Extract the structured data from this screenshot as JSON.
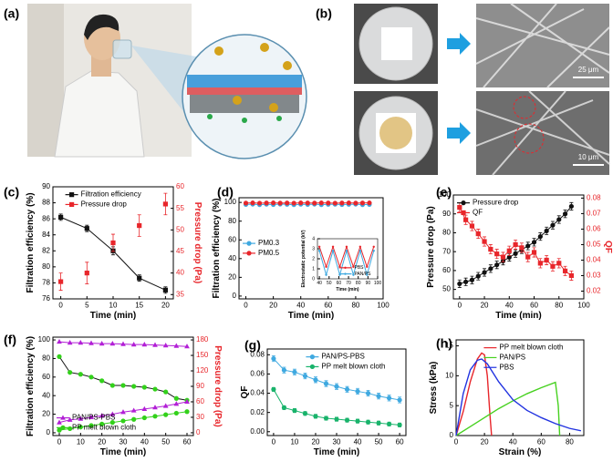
{
  "panels": {
    "a": {
      "label": "(a)"
    },
    "b": {
      "label": "(b)",
      "scale_bars": [
        "25 μm",
        "10 μm"
      ]
    }
  },
  "chart_data": [
    {
      "type": "line",
      "panel": "(c)",
      "xlabel": "Time (min)",
      "ylabel": "Filtration efficiency (%)",
      "y2label": "Pressure drop (Pa)",
      "y2_color": "#e8262b",
      "x": [
        0,
        5,
        10,
        15,
        20
      ],
      "xlim": [
        -1.5,
        21.5
      ],
      "xticks": [
        0,
        5,
        10,
        15,
        20
      ],
      "ylim": [
        76,
        90
      ],
      "yticks": [
        76,
        78,
        80,
        82,
        84,
        86,
        88,
        90
      ],
      "y2lim": [
        34,
        60
      ],
      "y2ticks": [
        35,
        40,
        45,
        50,
        55,
        60
      ],
      "legend": "upper right",
      "series": [
        {
          "name": "Filtration efficiency",
          "color": "#111111",
          "marker": "square",
          "values": [
            86.2,
            84.8,
            82.0,
            78.6,
            77.1
          ],
          "errors": [
            0.4,
            0.4,
            0.5,
            0.4,
            0.4
          ]
        },
        {
          "name": "Pressure drop",
          "color": "#e8262b",
          "marker": "square",
          "axis": "y2",
          "line": false,
          "values": [
            38,
            40,
            47,
            51,
            56
          ],
          "errors": [
            2,
            2.5,
            2,
            2.5,
            2.5
          ]
        }
      ]
    },
    {
      "type": "line",
      "panel": "(d)",
      "xlabel": "Time (min)",
      "ylabel": "Filtration efficiency (%)",
      "x": [
        0,
        5,
        10,
        15,
        20,
        25,
        30,
        35,
        40,
        45,
        50,
        55,
        60,
        65,
        70,
        75,
        80,
        85,
        90
      ],
      "xlim": [
        -5,
        100
      ],
      "xticks": [
        0,
        20,
        40,
        60,
        80,
        100
      ],
      "ylim": [
        -3,
        105
      ],
      "yticks": [
        0,
        20,
        40,
        60,
        80,
        100
      ],
      "legend": "center left",
      "series": [
        {
          "name": "PM0.3",
          "color": "#3fa9e0",
          "marker": "circle",
          "values": [
            97.8,
            98.1,
            97.6,
            98.0,
            97.7,
            98.2,
            97.9,
            97.5,
            98.0,
            97.8,
            98.1,
            97.6,
            97.9,
            98.0,
            97.7,
            97.9,
            98.1,
            97.6,
            97.8
          ]
        },
        {
          "name": "PM0.5",
          "color": "#e8262b",
          "marker": "circle",
          "values": [
            99.3,
            99.5,
            99.2,
            99.4,
            99.5,
            99.3,
            99.4,
            99.2,
            99.5,
            99.4,
            99.3,
            99.5,
            99.4,
            99.2,
            99.4,
            99.5,
            99.3,
            99.4,
            99.5
          ]
        }
      ],
      "inset": {
        "xlabel": "Time (min)",
        "ylabel": "Electrostatic potential (kV)",
        "x": [
          40,
          47,
          54,
          61,
          68,
          75,
          82,
          89,
          96
        ],
        "xlim": [
          38,
          100
        ],
        "xticks": [
          40,
          50,
          60,
          70,
          80,
          90,
          100
        ],
        "ylim": [
          0,
          4
        ],
        "yticks": [
          0,
          1,
          2,
          3,
          4
        ],
        "legend": "lower right",
        "series": [
          {
            "name": "PBS",
            "color": "#e8262b",
            "marker": "circle",
            "values": [
              3.2,
              1.2,
              3.2,
              1.2,
              3.2,
              1.2,
              3.2,
              1.2,
              3.2
            ]
          },
          {
            "name": "PAN/PS",
            "color": "#3fa9e0",
            "marker": "circle",
            "values": [
              2.8,
              0.4,
              2.8,
              0.4,
              2.8,
              0.4,
              2.8,
              0.4,
              2.8
            ]
          }
        ]
      }
    },
    {
      "type": "line",
      "panel": "(e)",
      "xlabel": "Time (min)",
      "ylabel": "Pressure drop (Pa)",
      "y2label": "QF",
      "y2_color": "#e8262b",
      "x": [
        0,
        5,
        10,
        15,
        20,
        25,
        30,
        35,
        40,
        45,
        50,
        55,
        60,
        65,
        70,
        75,
        80,
        85,
        90
      ],
      "xlim": [
        -5,
        100
      ],
      "xticks": [
        0,
        20,
        40,
        60,
        80,
        100
      ],
      "ylim": [
        45,
        100
      ],
      "yticks": [
        50,
        60,
        70,
        80,
        90,
        100
      ],
      "y2lim": [
        0.015,
        0.082
      ],
      "y2ticks": [
        0.02,
        0.03,
        0.04,
        0.05,
        0.06,
        0.07,
        0.08
      ],
      "legend": "upper left",
      "series": [
        {
          "name": "Pressure drop",
          "color": "#111111",
          "marker": "circle",
          "values": [
            53,
            54,
            55,
            57,
            59,
            61,
            63,
            65,
            67,
            69,
            71,
            73,
            75,
            78,
            81,
            84,
            87,
            90,
            94
          ],
          "errors": [
            2,
            2,
            2,
            2,
            2,
            2,
            2,
            2,
            2,
            2,
            2,
            2,
            2,
            2,
            2,
            2,
            2,
            2,
            2
          ]
        },
        {
          "name": "QF",
          "color": "#e8262b",
          "marker": "square",
          "axis": "y2",
          "values": [
            0.074,
            0.066,
            0.062,
            0.057,
            0.052,
            0.047,
            0.044,
            0.042,
            0.046,
            0.05,
            0.048,
            0.042,
            0.045,
            0.038,
            0.04,
            0.036,
            0.038,
            0.033,
            0.03
          ],
          "errors": [
            0.003,
            0.003,
            0.003,
            0.003,
            0.003,
            0.003,
            0.003,
            0.003,
            0.003,
            0.003,
            0.003,
            0.003,
            0.003,
            0.003,
            0.003,
            0.003,
            0.003,
            0.003,
            0.003
          ]
        }
      ]
    },
    {
      "type": "line",
      "panel": "(f)",
      "xlabel": "Time (min)",
      "ylabel": "Filtration efficiency (%)",
      "y2label": "Pressure drop (Pa)",
      "y2_color": "#e8262b",
      "x": [
        0,
        5,
        10,
        15,
        20,
        25,
        30,
        35,
        40,
        45,
        50,
        55,
        60
      ],
      "xlim": [
        -3,
        63
      ],
      "xticks": [
        0,
        10,
        20,
        30,
        40,
        50,
        60
      ],
      "ylim": [
        -3,
        103
      ],
      "yticks": [
        0,
        20,
        40,
        60,
        80,
        100
      ],
      "y2lim": [
        -5.4,
        185.4
      ],
      "y2ticks": [
        0,
        30,
        60,
        90,
        120,
        150,
        180
      ],
      "legend": "lower left",
      "series": [
        {
          "color": "#b21fd6",
          "marker": "triangle",
          "values": [
            98,
            97,
            97,
            96.5,
            96,
            96,
            95.5,
            95,
            95,
            94.5,
            94,
            93.5,
            93
          ]
        },
        {
          "color": "#111111",
          "marker": "circle",
          "marker_color": "#32d11a",
          "values": [
            82,
            65,
            63,
            60,
            56,
            51,
            51,
            50,
            49,
            47,
            44,
            37,
            35
          ]
        },
        {
          "name": "PAN/PS-PBS",
          "color": "#b21fd6",
          "marker": "triangle",
          "axis": "y2",
          "values": [
            20,
            25,
            27,
            30,
            33,
            36,
            40,
            43,
            46,
            49,
            52,
            56,
            60
          ]
        },
        {
          "name": "PP melt blown cloth",
          "color": "#32d11a",
          "marker": "circle",
          "axis": "y2",
          "values": [
            5,
            8,
            11,
            14,
            17,
            20,
            23,
            26,
            29,
            32,
            35,
            38,
            41
          ]
        }
      ]
    },
    {
      "type": "line",
      "panel": "(g)",
      "xlabel": "Time (min)",
      "ylabel": "QF",
      "x": [
        0,
        5,
        10,
        15,
        20,
        25,
        30,
        35,
        40,
        45,
        50,
        55,
        60
      ],
      "xlim": [
        -3,
        63
      ],
      "xticks": [
        0,
        10,
        20,
        30,
        40,
        50,
        60
      ],
      "ylim": [
        -0.004,
        0.086
      ],
      "yticks": [
        {
          "value": 0,
          "label": "0.00"
        },
        0.02,
        0.04,
        0.06,
        0.08
      ],
      "legend": "upper right",
      "series": [
        {
          "name": "PAN/PS-PBS",
          "color": "#3fa9e0",
          "marker": "circle",
          "values": [
            0.076,
            0.064,
            0.062,
            0.058,
            0.054,
            0.05,
            0.047,
            0.044,
            0.042,
            0.04,
            0.037,
            0.035,
            0.033
          ],
          "errors": [
            0.003,
            0.003,
            0.003,
            0.003,
            0.003,
            0.003,
            0.003,
            0.003,
            0.003,
            0.003,
            0.003,
            0.003,
            0.003
          ]
        },
        {
          "name": "PP melt blown cloth",
          "color": "#19b36b",
          "marker": "circle",
          "values": [
            0.044,
            0.025,
            0.022,
            0.019,
            0.016,
            0.014,
            0.013,
            0.012,
            0.011,
            0.01,
            0.009,
            0.008,
            0.007
          ],
          "errors": [
            0.002,
            0.002,
            0.002,
            0.002,
            0.002,
            0.002,
            0.002,
            0.002,
            0.002,
            0.002,
            0.002,
            0.002,
            0.002
          ]
        }
      ]
    },
    {
      "type": "line",
      "panel": "(h)",
      "xlabel": "Strain (%)",
      "ylabel": "Stress (kPa)",
      "xlim": [
        0,
        90
      ],
      "xticks": [
        0,
        20,
        40,
        60,
        80
      ],
      "ylim": [
        0,
        16
      ],
      "yticks": [
        0,
        5,
        10,
        15
      ],
      "legend": "upper right",
      "series": [
        {
          "name": "PP melt blown cloth",
          "color": "#e8262b",
          "x": [
            0,
            5,
            10,
            15,
            18,
            20,
            22,
            24,
            25
          ],
          "values": [
            0,
            4,
            9,
            12.8,
            13.8,
            13.5,
            10,
            3,
            0
          ]
        },
        {
          "name": "PAN/PS",
          "color": "#46d11f",
          "x": [
            0,
            10,
            20,
            30,
            40,
            50,
            60,
            70,
            72,
            73
          ],
          "values": [
            0,
            1.5,
            3,
            4.5,
            5.8,
            7,
            8,
            8.9,
            5,
            0
          ]
        },
        {
          "name": "PBS",
          "color": "#2233e0",
          "x": [
            0,
            5,
            10,
            15,
            18,
            22,
            30,
            40,
            50,
            60,
            70,
            80,
            88
          ],
          "values": [
            0,
            7,
            11,
            12.6,
            12.8,
            12,
            9,
            6,
            4.2,
            3,
            2,
            1.2,
            0.8
          ]
        }
      ]
    }
  ]
}
